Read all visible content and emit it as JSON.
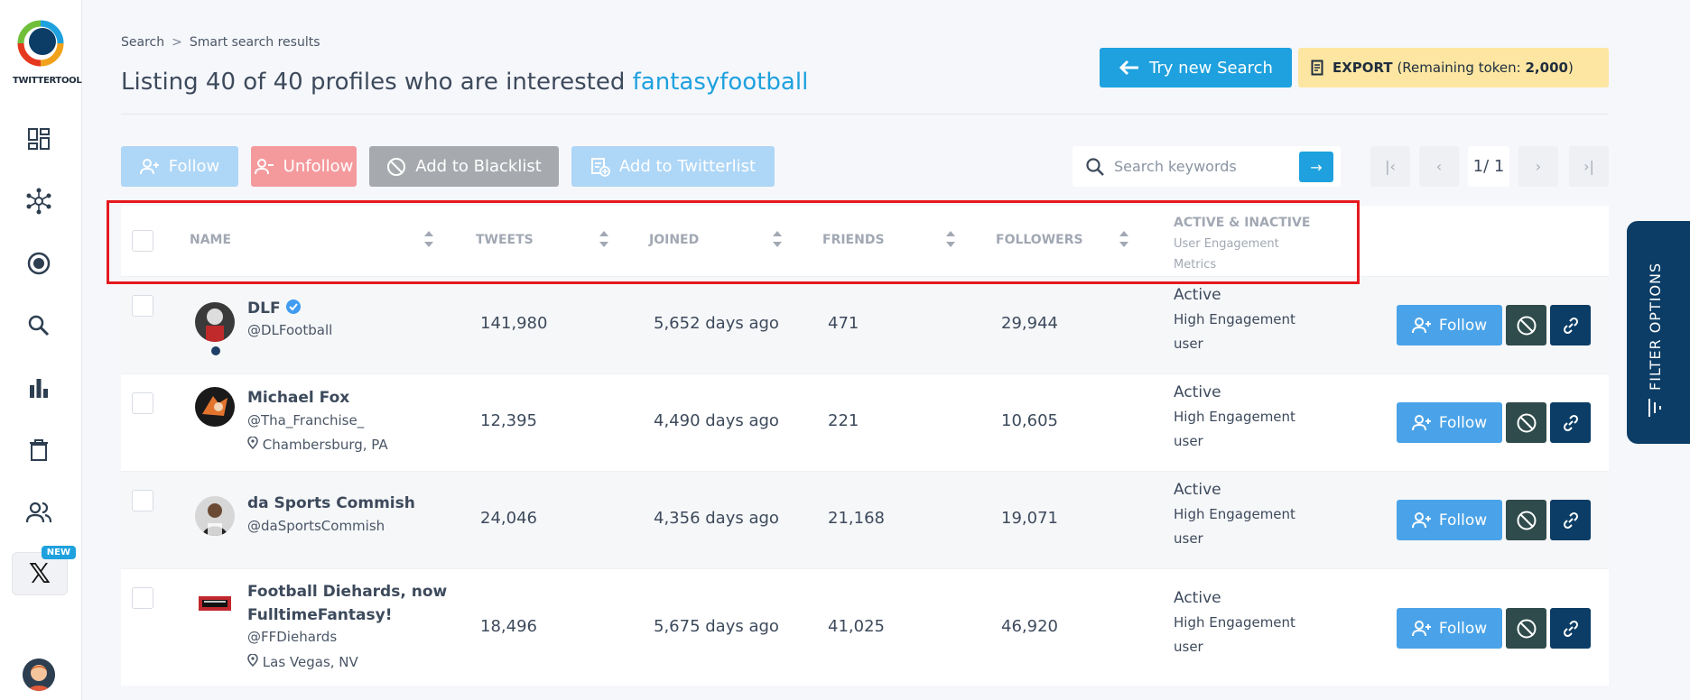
{
  "app": {
    "logo_text": "TWITTERTOOL",
    "new_badge": "NEW"
  },
  "breadcrumb": {
    "root": "Search",
    "separator": ">",
    "current": "Smart search results"
  },
  "title": {
    "prefix": "Listing 40 of 40 profiles who are interested",
    "keyword": "fantasyfootball"
  },
  "header_buttons": {
    "try_new": "Try new Search",
    "export_label": "EXPORT",
    "export_note_prefix": "(Remaining token: ",
    "export_tokens": "2,000",
    "export_note_suffix": ")"
  },
  "toolbar": {
    "follow": "Follow",
    "unfollow": "Unfollow",
    "blacklist": "Add to Blacklist",
    "twitterlist": "Add to Twitterlist"
  },
  "search": {
    "placeholder": "Search keywords",
    "go": "→"
  },
  "pager": {
    "current": "1/ 1"
  },
  "table": {
    "headers": {
      "name": "NAME",
      "tweets": "TWEETS",
      "joined": "JOINED",
      "friends": "FRIENDS",
      "followers": "FOLLOWERS",
      "status_title": "ACTIVE & INACTIVE",
      "status_sub1": "User Engagement",
      "status_sub2": "Metrics"
    },
    "rows": [
      {
        "name": "DLF",
        "handle": "@DLFootball",
        "location": "",
        "tweets": "141,980",
        "joined": "5,652 days ago",
        "friends": "471",
        "followers": "29,944",
        "status": "Active",
        "meta1": "High Engagement",
        "meta2": "user",
        "follow": "Follow"
      },
      {
        "name": "Michael Fox",
        "handle": "@Tha_Franchise_",
        "location": "Chambersburg, PA",
        "tweets": "12,395",
        "joined": "4,490 days ago",
        "friends": "221",
        "followers": "10,605",
        "status": "Active",
        "meta1": "High Engagement",
        "meta2": "user",
        "follow": "Follow"
      },
      {
        "name": "da Sports Commish",
        "handle": "@daSportsCommish",
        "location": "",
        "tweets": "24,046",
        "joined": "4,356 days ago",
        "friends": "21,168",
        "followers": "19,071",
        "status": "Active",
        "meta1": "High Engagement",
        "meta2": "user",
        "follow": "Follow"
      },
      {
        "name_line1": "Football Diehards, now",
        "name_line2": "FulltimeFantasy!",
        "handle": "@FFDiehards",
        "location": "Las Vegas, NV",
        "tweets": "18,496",
        "joined": "5,675 days ago",
        "friends": "41,025",
        "followers": "46,920",
        "status": "Active",
        "meta1": "High Engagement",
        "meta2": "user",
        "follow": "Follow"
      }
    ]
  },
  "filter_tab": {
    "label": "FILTER OPTIONS"
  },
  "colors": {
    "accent": "#1ea1de",
    "navy": "#0b3d66",
    "highlight": "#e5191f",
    "export_bg": "#fde6a2"
  }
}
